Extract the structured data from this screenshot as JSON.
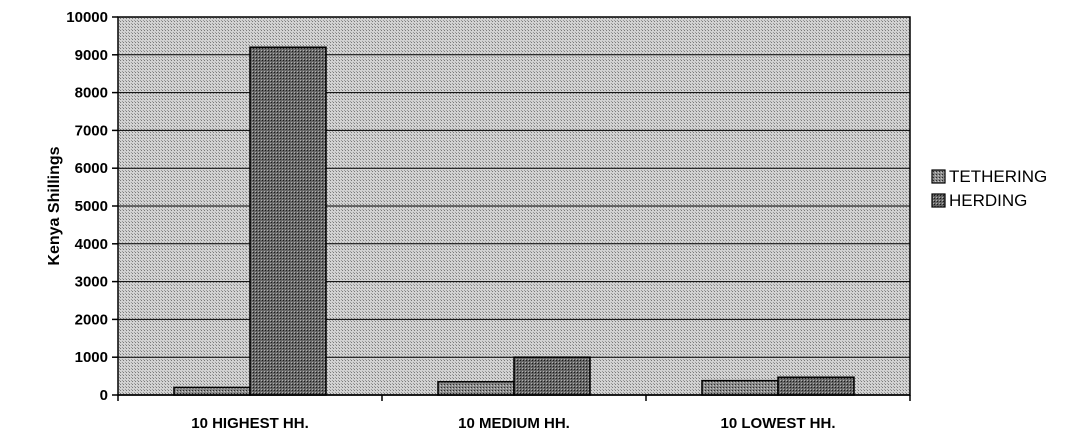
{
  "chart_data": {
    "type": "bar",
    "categories": [
      "10 HIGHEST HH.",
      "10 MEDIUM HH.",
      "10 LOWEST HH."
    ],
    "series": [
      {
        "name": "TETHERING",
        "values": [
          200,
          350,
          380
        ]
      },
      {
        "name": "HERDING",
        "values": [
          9200,
          1000,
          470
        ]
      }
    ],
    "ylabel": "Kenya Shillings",
    "ylim": [
      0,
      10000
    ],
    "yticks": [
      "0",
      "1000",
      "2000",
      "3000",
      "4000",
      "5000",
      "6000",
      "7000",
      "8000",
      "9000",
      "10000"
    ],
    "grid": true,
    "legend_position": "right"
  }
}
